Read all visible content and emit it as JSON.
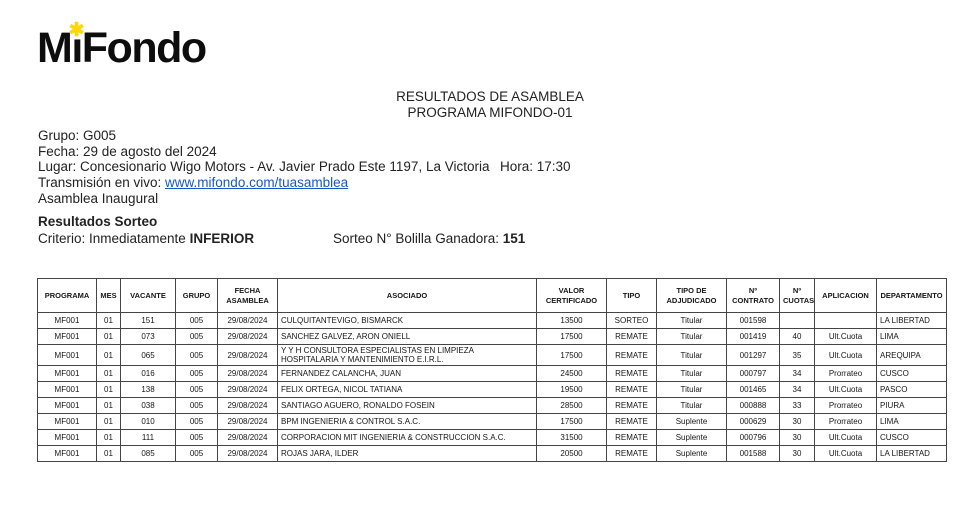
{
  "logo": {
    "left": "M",
    "i": "ı",
    "right": "Fondo",
    "star": "✱",
    "star_color": "#FFD60A"
  },
  "title": {
    "line1": "RESULTADOS DE ASAMBLEA",
    "line2": "PROGRAMA MIFONDO-01"
  },
  "meta": {
    "grupo": "Grupo: G005",
    "fecha": "Fecha: 29 de agosto del 2024",
    "lugar": "Lugar: Concesionario Wigo Motors - Av. Javier Prado Este 1197, La Victoria",
    "hora": "Hora: 17:30",
    "transmision_label": "Transmisión en vivo: ",
    "transmision_link": "www.mifondo.com/tuasamblea",
    "asamblea": "Asamblea Inaugural"
  },
  "sorteo": {
    "heading": "Resultados Sorteo",
    "criterio_label": "Criterio: Inmediatamente ",
    "criterio_value": "INFERIOR",
    "bolilla_label": "Sorteo N° Bolilla Ganadora: ",
    "bolilla_value": "151"
  },
  "table": {
    "headers": [
      "PROGRAMA",
      "MES",
      "VACANTE",
      "GRUPO",
      "FECHA ASAMBLEA",
      "ASOCIADO",
      "VALOR CERTIFICADO",
      "TIPO",
      "TIPO DE ADJUDICADO",
      "Nº CONTRATO",
      "Nº CUOTAS",
      "APLICACION",
      "DEPARTAMENTO"
    ],
    "rows": [
      [
        "MF001",
        "01",
        "151",
        "005",
        "29/08/2024",
        "CULQUITANTEVIGO, BISMARCK",
        "13500",
        "SORTEO",
        "Titular",
        "001598",
        "",
        "",
        "LA LIBERTAD"
      ],
      [
        "MF001",
        "01",
        "073",
        "005",
        "29/08/2024",
        "SANCHEZ GALVEZ, ARON ONIELL",
        "17500",
        "REMATE",
        "Titular",
        "001419",
        "40",
        "Ult.Cuota",
        "LIMA"
      ],
      [
        "MF001",
        "01",
        "065",
        "005",
        "29/08/2024",
        "Y Y H CONSULTORA ESPECIALISTAS EN LIMPIEZA HOSPITALARIA Y MANTENIMIENTO E.I.R.L.",
        "17500",
        "REMATE",
        "Titular",
        "001297",
        "35",
        "Ult.Cuota",
        "AREQUIPA"
      ],
      [
        "MF001",
        "01",
        "016",
        "005",
        "29/08/2024",
        "FERNANDEZ CALANCHA, JUAN",
        "24500",
        "REMATE",
        "Titular",
        "000797",
        "34",
        "Prorrateo",
        "CUSCO"
      ],
      [
        "MF001",
        "01",
        "138",
        "005",
        "29/08/2024",
        "FELIX ORTEGA, NICOL TATIANA",
        "19500",
        "REMATE",
        "Titular",
        "001465",
        "34",
        "Ult.Cuota",
        "PASCO"
      ],
      [
        "MF001",
        "01",
        "038",
        "005",
        "29/08/2024",
        "SANTIAGO AGUERO, RONALDO FOSEIN",
        "28500",
        "REMATE",
        "Titular",
        "000888",
        "33",
        "Prorrateo",
        "PIURA"
      ],
      [
        "MF001",
        "01",
        "010",
        "005",
        "29/08/2024",
        "BPM INGENIERIA & CONTROL S.A.C.",
        "17500",
        "REMATE",
        "Suplente",
        "000629",
        "30",
        "Prorrateo",
        "LIMA"
      ],
      [
        "MF001",
        "01",
        "111",
        "005",
        "29/08/2024",
        "CORPORACION MIT INGENIERIA & CONSTRUCCION S.A.C.",
        "31500",
        "REMATE",
        "Suplente",
        "000796",
        "30",
        "Ult.Cuota",
        "CUSCO"
      ],
      [
        "MF001",
        "01",
        "085",
        "005",
        "29/08/2024",
        "ROJAS JARA, ILDER",
        "20500",
        "REMATE",
        "Suplente",
        "001588",
        "30",
        "Ult.Cuota",
        "LA LIBERTAD"
      ]
    ]
  }
}
